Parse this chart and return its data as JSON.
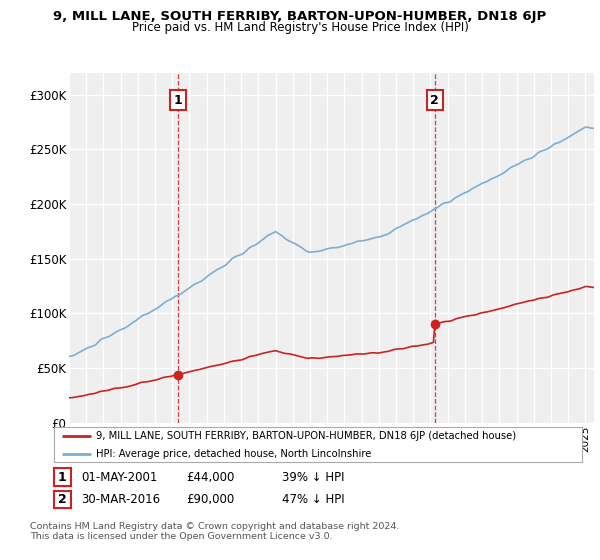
{
  "title": "9, MILL LANE, SOUTH FERRIBY, BARTON-UPON-HUMBER, DN18 6JP",
  "subtitle": "Price paid vs. HM Land Registry's House Price Index (HPI)",
  "ylim": [
    0,
    320000
  ],
  "yticks": [
    0,
    50000,
    100000,
    150000,
    200000,
    250000,
    300000
  ],
  "ytick_labels": [
    "£0",
    "£50K",
    "£100K",
    "£150K",
    "£200K",
    "£250K",
    "£300K"
  ],
  "background_color": "#ffffff",
  "plot_bg_color": "#efefef",
  "hpi_color": "#7bafd4",
  "price_color": "#cc2222",
  "sale1_date": 2001.33,
  "sale1_price": 44000,
  "sale2_date": 2016.25,
  "sale2_price": 90000,
  "legend_line1": "9, MILL LANE, SOUTH FERRIBY, BARTON-UPON-HUMBER, DN18 6JP (detached house)",
  "legend_line2": "HPI: Average price, detached house, North Lincolnshire",
  "xmin": 1995,
  "xmax": 2025.5
}
